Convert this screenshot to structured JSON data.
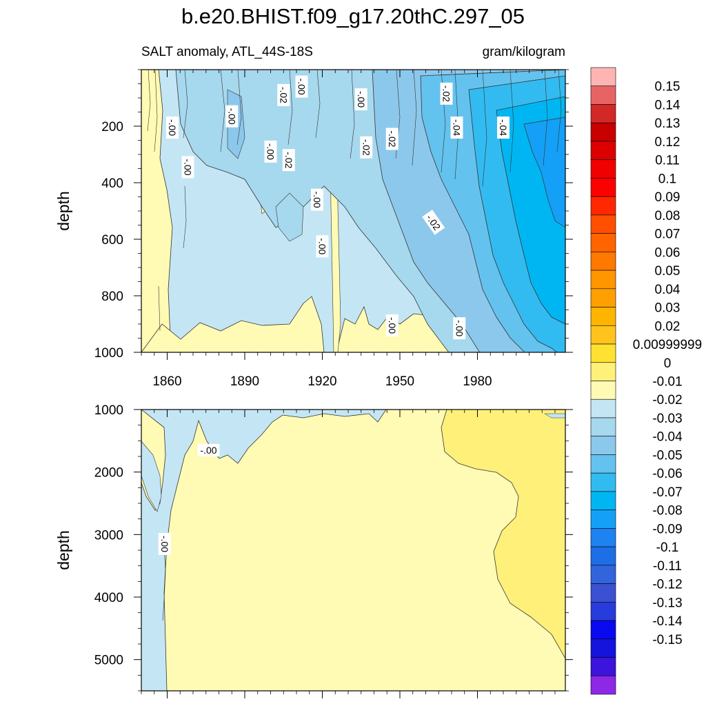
{
  "title": "b.e20.BHIST.f09_g17.20thC.297_05",
  "colors": {
    "background": "#ffffff",
    "frame": "#000000",
    "contour_line": "#333333",
    "label_box": "#ffffff"
  },
  "chart_data": [
    {
      "type": "heatmap",
      "panel": "upper",
      "left_title": "SALT anomaly, ATL_44S-18S",
      "right_title": "gram/kilogram",
      "ylabel": "depth",
      "xlim": [
        1850,
        2014
      ],
      "ylim": [
        0,
        1000
      ],
      "y_inverted": true,
      "x_ticks": [
        1860,
        1890,
        1920,
        1950,
        1980
      ],
      "x_tick_labels": [
        "1860",
        "1890",
        "1920",
        "1950",
        "1980"
      ],
      "y_ticks": [
        200,
        400,
        600,
        800,
        1000
      ],
      "y_tick_labels": [
        "200",
        "400",
        "600",
        "800",
        "1000"
      ],
      "contour_labels": [
        {
          "text": "-.00",
          "x": 1912,
          "y": 60
        },
        {
          "text": "-.02",
          "x": 1905,
          "y": 90
        },
        {
          "text": "-.00",
          "x": 1885,
          "y": 165
        },
        {
          "text": "-.00",
          "x": 1862,
          "y": 205
        },
        {
          "text": "-.00",
          "x": 1868,
          "y": 345
        },
        {
          "text": "-.00",
          "x": 1900,
          "y": 290
        },
        {
          "text": "-.02",
          "x": 1907,
          "y": 320
        },
        {
          "text": "-.00",
          "x": 1935,
          "y": 105
        },
        {
          "text": "-.02",
          "x": 1937,
          "y": 275
        },
        {
          "text": "-.02",
          "x": 1947,
          "y": 245
        },
        {
          "text": "-.02",
          "x": 1968,
          "y": 85
        },
        {
          "text": "-.04",
          "x": 1972,
          "y": 205
        },
        {
          "text": "-.04",
          "x": 1990,
          "y": 205
        },
        {
          "text": "-.00",
          "x": 1918,
          "y": 460
        },
        {
          "text": "-.00",
          "x": 1920,
          "y": 625
        },
        {
          "text": "-.02",
          "x": 1963,
          "y": 540
        },
        {
          "text": "-.00",
          "x": 1947,
          "y": 905
        },
        {
          "text": "-.00",
          "x": 1973,
          "y": 915
        }
      ]
    },
    {
      "type": "heatmap",
      "panel": "lower",
      "ylabel": "depth",
      "xlim": [
        1850,
        2014
      ],
      "ylim": [
        1000,
        5500
      ],
      "y_inverted": true,
      "x_ticks": [
        1860,
        1890,
        1920,
        1950,
        1980
      ],
      "y_ticks": [
        1000,
        2000,
        3000,
        4000,
        5000
      ],
      "y_tick_labels": [
        "1000",
        "2000",
        "3000",
        "4000",
        "5000"
      ],
      "contour_labels": [
        {
          "text": "-.00",
          "x": 1876,
          "y": 1650
        },
        {
          "text": "-.00",
          "x": 1859,
          "y": 3150
        }
      ]
    }
  ],
  "colorbar": {
    "orientation": "vertical",
    "fills": [
      "#ffb4b4",
      "#e86464",
      "#d22828",
      "#c80000",
      "#dc0000",
      "#f00000",
      "#ff0000",
      "#ff2800",
      "#ff5000",
      "#ff6400",
      "#ff7800",
      "#ff9600",
      "#ffa000",
      "#ffb400",
      "#ffc31e",
      "#ffe132",
      "#fff07a",
      "#fffab4",
      "#c4e6f4",
      "#a6d8ee",
      "#8cc8ec",
      "#64c2ee",
      "#32bbf0",
      "#00b6f2",
      "#14a0f6",
      "#1e82f0",
      "#1e6ee6",
      "#3264dc",
      "#3c50d2",
      "#283cdc",
      "#0a0af0",
      "#1414dc",
      "#3c14dc",
      "#8c28e6"
    ],
    "labels": [
      "0.15",
      "0.14",
      "0.13",
      "0.12",
      "0.11",
      "0.1",
      "0.09",
      "0.08",
      "0.07",
      "0.06",
      "0.05",
      "0.04",
      "0.03",
      "0.02",
      "0.00999999",
      "0",
      "-0.01",
      "-0.02",
      "-0.03",
      "-0.04",
      "-0.05",
      "-0.06",
      "-0.07",
      "-0.08",
      "-0.09",
      "-0.1",
      "-0.11",
      "-0.12",
      "-0.13",
      "-0.14",
      "-0.15"
    ]
  }
}
